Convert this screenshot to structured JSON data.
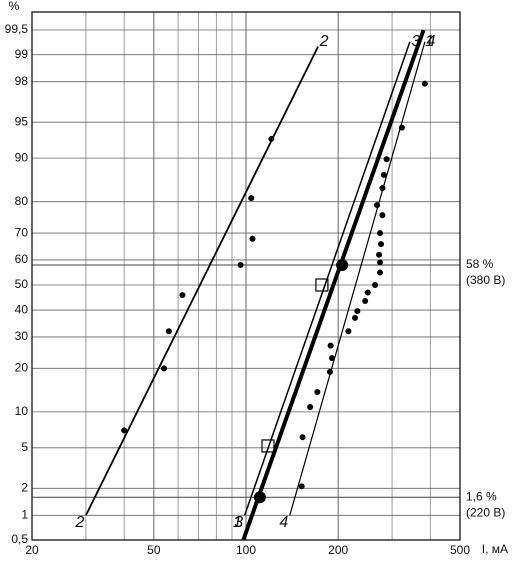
{
  "chart_data": {
    "type": "probability",
    "y_label": "%",
    "x_label": "I, мА",
    "xscale": "log",
    "yscale": "probability",
    "xlim": [
      20,
      500
    ],
    "ylim": [
      0.5,
      99.5
    ],
    "xticks": [
      20,
      50,
      100,
      200,
      500
    ],
    "xgrid": [
      30,
      40,
      60,
      70,
      80,
      90,
      300,
      400
    ],
    "yticks": [
      {
        "value": 0.5,
        "label": "0,5"
      },
      1,
      2,
      5,
      10,
      20,
      30,
      40,
      50,
      60,
      70,
      80,
      90,
      95,
      98,
      99,
      {
        "value": 99.5,
        "label": "99,5"
      }
    ],
    "grid": true,
    "lines": [
      {
        "name": "2",
        "x": [
          30,
          172
        ],
        "y": [
          1,
          99.2
        ],
        "width": 1.8
      },
      {
        "name": "3",
        "x": [
          99,
          343
        ],
        "y": [
          1,
          99.3
        ],
        "width": 1.5
      },
      {
        "name": "1",
        "x": [
          98,
          380
        ],
        "y": [
          0.5,
          99.5
        ],
        "width": 4
      },
      {
        "name": "4",
        "x": [
          139,
          384
        ],
        "y": [
          1,
          99.3
        ],
        "width": 1.2
      }
    ],
    "points": {
      "x": [
        40,
        54,
        56,
        62,
        96,
        105,
        104,
        121,
        384,
        323,
        288,
        282,
        279,
        268,
        279,
        274,
        276,
        272,
        274,
        274,
        264,
        250,
        245,
        231,
        227,
        216,
        189,
        191,
        188,
        171,
        162,
        153,
        152
      ],
      "y": [
        7.1,
        20,
        32,
        46,
        58,
        68,
        81,
        93,
        97.9,
        94.4,
        89.8,
        86.7,
        83.6,
        79,
        76,
        70,
        66,
        62,
        59,
        55,
        50,
        47,
        43.6,
        39.6,
        37,
        32,
        27,
        23,
        19,
        14,
        10.9,
        6.2,
        2.1
      ]
    },
    "highlight_points": {
      "x": [
        111,
        206
      ],
      "y": [
        1.6,
        58
      ]
    },
    "square_points": {
      "x": [
        118,
        177
      ],
      "y": [
        5.2,
        50
      ]
    },
    "annotations": [
      {
        "value": 58,
        "text": [
          "58 %",
          "(380 В)"
        ]
      },
      {
        "value": 1.6,
        "text": [
          "1,6 %",
          "(220 В)"
        ]
      }
    ]
  }
}
